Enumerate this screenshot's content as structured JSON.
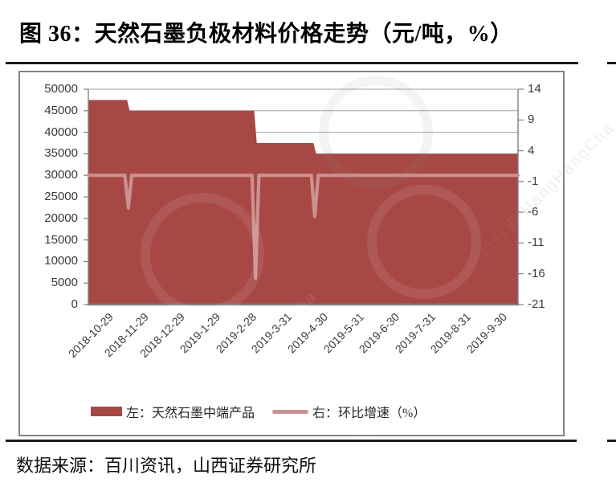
{
  "page": {
    "title": "图 36：天然石墨负极材料价格走势（元/吨，%）",
    "source": "数据来源：百川资讯，山西证券研究所",
    "watermark": {
      "text": "行行查 HangHangCha"
    }
  },
  "chart_data": {
    "type": "combo",
    "title": "图 36：天然石墨负极材料价格走势（元/吨，%）",
    "x_tick_labels": [
      "2018-10-29",
      "2018-11-29",
      "2018-12-29",
      "2019-1-29",
      "2019-2-28",
      "2019-3-31",
      "2019-4-30",
      "2019-5-31",
      "2019-6-30",
      "2019-7-31",
      "2019-8-31",
      "2019-9-30"
    ],
    "left_axis": {
      "min": 0,
      "max": 50000,
      "tick_step": 5000,
      "ticks": [
        "50000",
        "45000",
        "40000",
        "35000",
        "30000",
        "25000",
        "20000",
        "15000",
        "10000",
        "5000",
        "0"
      ]
    },
    "right_axis": {
      "min": -21,
      "max": 14,
      "tick_step": 5,
      "ticks": [
        "14",
        "9",
        "4",
        "-1",
        "-6",
        "-11",
        "-16",
        "-21"
      ]
    },
    "grid": "horizontal-left-ticks",
    "legend_position": "bottom",
    "series": [
      {
        "name": "左：天然石墨中端产品",
        "type": "area",
        "axis": "left",
        "color": "#A84845",
        "points": [
          [
            0,
            47500
          ],
          [
            0.09,
            47500
          ],
          [
            0.096,
            45000
          ],
          [
            0.386,
            45000
          ],
          [
            0.392,
            37500
          ],
          [
            0.524,
            37500
          ],
          [
            0.53,
            35000
          ],
          [
            1,
            35000
          ]
        ]
      },
      {
        "name": "右：环比增速（%）",
        "type": "line",
        "axis": "right",
        "color": "#CB9290",
        "points": [
          [
            0,
            0
          ],
          [
            0.085,
            0
          ],
          [
            0.093,
            -5.3
          ],
          [
            0.101,
            0
          ],
          [
            0.381,
            0
          ],
          [
            0.389,
            -16.7
          ],
          [
            0.397,
            0
          ],
          [
            0.519,
            0
          ],
          [
            0.527,
            -6.7
          ],
          [
            0.535,
            0
          ],
          [
            1,
            0
          ]
        ]
      }
    ],
    "colors": {
      "grid": "#A0A0A0",
      "axis": "#808080",
      "text": "#3a3a3a"
    }
  }
}
